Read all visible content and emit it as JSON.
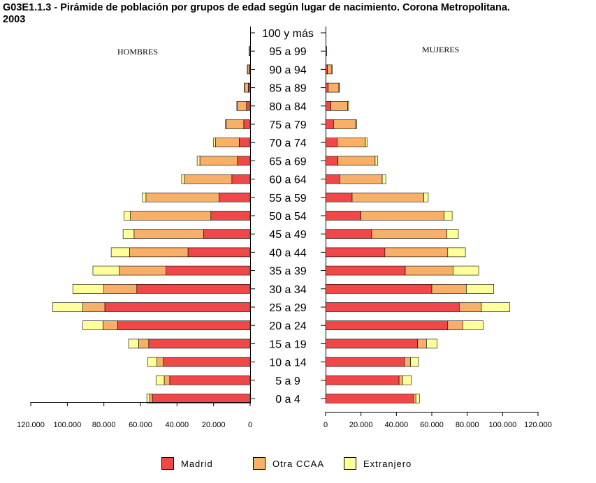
{
  "chart_data": {
    "type": "bar",
    "title": "G03E1.1.3 - Pirámide de población por grupos de edad según lugar de nacimiento. Corona Metropolitana.\n2003",
    "left_panel_label": "HOMBRES",
    "right_panel_label": "MUJERES",
    "categories": [
      "100 y más",
      "95 a 99",
      "90 a 94",
      "85 a 89",
      "80 a 84",
      "75 a 79",
      "70 a 74",
      "65 a 69",
      "60 a 64",
      "55 a 59",
      "50 a 54",
      "45 a 49",
      "40 a  44",
      "35 a 39",
      "30 a 34",
      "25 a 29",
      "20 a 24",
      "15 a 19",
      "10 a 14",
      "5 a 9",
      "0 a 4"
    ],
    "xlim": [
      0,
      120000
    ],
    "ticks": [
      "0",
      "20.000",
      "40.000",
      "60.000",
      "80.000",
      "100.000",
      "120.000"
    ],
    "colors": {
      "Madrid": "#f04848",
      "Otra CCAA": "#f8b068",
      "Extranjero": "#ffff9c"
    },
    "legend": [
      {
        "key": "Madrid",
        "label": "Madrid"
      },
      {
        "key": "Otra CCAA",
        "label": "Otra CCAA"
      },
      {
        "key": "Extranjero",
        "label": "Extranjero"
      }
    ],
    "hombres": [
      {
        "Madrid": 0,
        "Otra CCAA": 0,
        "Extranjero": 0
      },
      {
        "Madrid": 0,
        "Otra CCAA": 500,
        "Extranjero": 100
      },
      {
        "Madrid": 500,
        "Otra CCAA": 1000,
        "Extranjero": 100
      },
      {
        "Madrid": 1000,
        "Otra CCAA": 2000,
        "Extranjero": 200
      },
      {
        "Madrid": 2000,
        "Otra CCAA": 5000,
        "Extranjero": 300
      },
      {
        "Madrid": 3500,
        "Otra CCAA": 9500,
        "Extranjero": 500
      },
      {
        "Madrid": 6000,
        "Otra CCAA": 13000,
        "Extranjero": 1000
      },
      {
        "Madrid": 7000,
        "Otra CCAA": 20500,
        "Extranjero": 1500
      },
      {
        "Madrid": 10000,
        "Otra CCAA": 26000,
        "Extranjero": 1500
      },
      {
        "Madrid": 17000,
        "Otra CCAA": 40000,
        "Extranjero": 2000
      },
      {
        "Madrid": 21500,
        "Otra CCAA": 44000,
        "Extranjero": 3500
      },
      {
        "Madrid": 25500,
        "Otra CCAA": 38000,
        "Extranjero": 6000
      },
      {
        "Madrid": 34000,
        "Otra CCAA": 32000,
        "Extranjero": 10000
      },
      {
        "Madrid": 46000,
        "Otra CCAA": 25500,
        "Extranjero": 14500
      },
      {
        "Madrid": 62000,
        "Otra CCAA": 18000,
        "Extranjero": 17000
      },
      {
        "Madrid": 79500,
        "Otra CCAA": 12000,
        "Extranjero": 16500
      },
      {
        "Madrid": 72500,
        "Otra CCAA": 8000,
        "Extranjero": 11000
      },
      {
        "Madrid": 55500,
        "Otra CCAA": 5500,
        "Extranjero": 5500
      },
      {
        "Madrid": 47500,
        "Otra CCAA": 3500,
        "Extranjero": 5000
      },
      {
        "Madrid": 44000,
        "Otra CCAA": 3000,
        "Extranjero": 4500
      },
      {
        "Madrid": 53500,
        "Otra CCAA": 1500,
        "Extranjero": 1500
      }
    ],
    "mujeres": [
      {
        "Madrid": 0,
        "Otra CCAA": 0,
        "Extranjero": 0
      },
      {
        "Madrid": 0,
        "Otra CCAA": 500,
        "Extranjero": 100
      },
      {
        "Madrid": 1000,
        "Otra CCAA": 2500,
        "Extranjero": 200
      },
      {
        "Madrid": 1500,
        "Otra CCAA": 6000,
        "Extranjero": 300
      },
      {
        "Madrid": 3000,
        "Otra CCAA": 9500,
        "Extranjero": 500
      },
      {
        "Madrid": 4500,
        "Otra CCAA": 12500,
        "Extranjero": 500
      },
      {
        "Madrid": 6500,
        "Otra CCAA": 16000,
        "Extranjero": 1000
      },
      {
        "Madrid": 7000,
        "Otra CCAA": 21000,
        "Extranjero": 1500
      },
      {
        "Madrid": 8000,
        "Otra CCAA": 24000,
        "Extranjero": 2000
      },
      {
        "Madrid": 15000,
        "Otra CCAA": 40500,
        "Extranjero": 2500
      },
      {
        "Madrid": 20000,
        "Otra CCAA": 47000,
        "Extranjero": 4500
      },
      {
        "Madrid": 26000,
        "Otra CCAA": 42500,
        "Extranjero": 6500
      },
      {
        "Madrid": 33500,
        "Otra CCAA": 35500,
        "Extranjero": 10000
      },
      {
        "Madrid": 45000,
        "Otra CCAA": 27000,
        "Extranjero": 14500
      },
      {
        "Madrid": 60000,
        "Otra CCAA": 19500,
        "Extranjero": 15500
      },
      {
        "Madrid": 75500,
        "Otra CCAA": 12500,
        "Extranjero": 16000
      },
      {
        "Madrid": 69000,
        "Otra CCAA": 8500,
        "Extranjero": 11500
      },
      {
        "Madrid": 52000,
        "Otra CCAA": 5000,
        "Extranjero": 6000
      },
      {
        "Madrid": 44500,
        "Otra CCAA": 3500,
        "Extranjero": 4500
      },
      {
        "Madrid": 41500,
        "Otra CCAA": 2000,
        "Extranjero": 5000
      },
      {
        "Madrid": 49500,
        "Otra CCAA": 1500,
        "Extranjero": 2000
      }
    ]
  }
}
